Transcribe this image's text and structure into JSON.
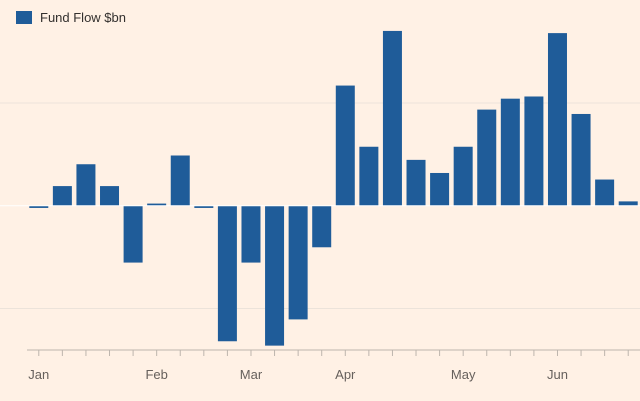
{
  "chart_data": {
    "type": "bar",
    "legend": [
      {
        "name": "Fund Flow $bn",
        "color": "#1f5c99"
      }
    ],
    "legend_position": "top-left",
    "x_tick_labels": [
      "Jan",
      "Feb",
      "Mar",
      "Apr",
      "May",
      "Jun"
    ],
    "x_tick_label_week_index": [
      0,
      5,
      9,
      13,
      18,
      22
    ],
    "weeks": 26,
    "values": [
      -0.1,
      0.9,
      1.9,
      0.9,
      -2.6,
      0.1,
      2.3,
      -0.1,
      -6.2,
      -2.6,
      -6.4,
      -5.2,
      -1.9,
      5.5,
      2.7,
      8.0,
      2.1,
      1.5,
      2.7,
      4.4,
      4.9,
      5.0,
      7.9,
      4.2,
      1.2,
      0.2
    ],
    "ylim": [
      -6.6,
      8.5
    ],
    "y_gridlines": [
      -4.7,
      4.7
    ],
    "grid": true,
    "title": "",
    "xlabel": "",
    "ylabel": "",
    "colors": {
      "bar": "#1f5c99",
      "background": "#fff1e5",
      "grid": "#ece3da",
      "zero_line": "#ffffff",
      "axis": "#bdb5ad",
      "label": "#66605c"
    }
  }
}
